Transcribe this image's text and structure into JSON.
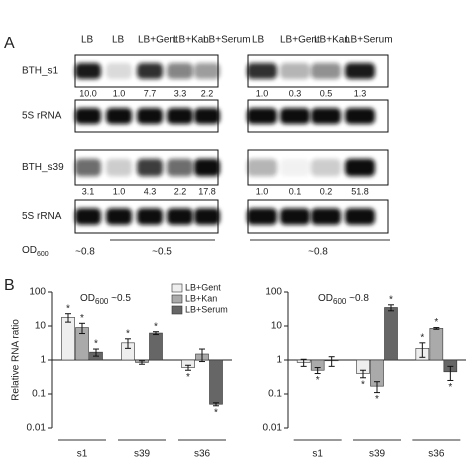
{
  "panel_a": {
    "label": "A",
    "left_lanes": [
      "LB",
      "LB",
      "LB+Gent",
      "LB+Kan",
      "LB+Serum"
    ],
    "right_lanes": [
      "LB",
      "LB+Gent",
      "LB+Kan",
      "LB+Serum"
    ],
    "blots": [
      {
        "name": "BTH_s1",
        "left_values": [
          "10.0",
          "1.0",
          "7.7",
          "3.3",
          "2.2"
        ],
        "right_values": [
          "1.0",
          "0.3",
          "0.5",
          "1.3"
        ]
      },
      {
        "name": "5S rRNA"
      },
      {
        "name": "BTH_s39",
        "left_values": [
          "3.1",
          "1.0",
          "4.3",
          "2.2",
          "17.8"
        ],
        "right_values": [
          "1.0",
          "0.1",
          "0.2",
          "51.8"
        ]
      },
      {
        "name": "5S rRNA"
      }
    ],
    "od": {
      "label": "OD",
      "subscript": "600",
      "groups": [
        "~0.8",
        "~0.5",
        "~0.8"
      ]
    }
  },
  "panel_b": {
    "label": "B"
  },
  "chart_data": [
    {
      "type": "bar",
      "title": {
        "prefix": "OD",
        "subscript": "600",
        "suffix": " ~0.5"
      },
      "ylabel": "Relative RNA ratio",
      "yscale": "log",
      "ylim": [
        0.01,
        100
      ],
      "yticks": [
        0.01,
        0.1,
        1,
        10,
        100
      ],
      "categories": [
        "s1",
        "s39",
        "s36"
      ],
      "legend": "upper right",
      "series": [
        {
          "name": "LB+Gent",
          "color": "#eeeeee",
          "values": [
            18,
            3.2,
            0.6
          ],
          "errors": [
            5,
            1,
            0.1
          ],
          "significance": [
            "*",
            "*",
            "*"
          ]
        },
        {
          "name": "LB+Kan",
          "color": "#aaaaaa",
          "values": [
            9,
            0.85,
            1.5
          ],
          "errors": [
            3,
            0.1,
            0.6
          ],
          "significance": [
            "*",
            null,
            null
          ]
        },
        {
          "name": "LB+Serum",
          "color": "#666666",
          "values": [
            1.7,
            6.2,
            0.05
          ],
          "errors": [
            0.4,
            0.6,
            0.005
          ],
          "significance": [
            "*",
            "*",
            "*"
          ]
        }
      ]
    },
    {
      "type": "bar",
      "title": {
        "prefix": "OD",
        "subscript": "600",
        "suffix": " ~0.8"
      },
      "yscale": "log",
      "ylim": [
        0.01,
        100
      ],
      "yticks": [
        0.01,
        0.1,
        1,
        10,
        100
      ],
      "categories": [
        "s1",
        "s39",
        "s36"
      ],
      "series": [
        {
          "name": "LB+Gent",
          "color": "#eeeeee",
          "values": [
            0.85,
            0.4,
            2.2
          ],
          "errors": [
            0.2,
            0.1,
            1
          ],
          "significance": [
            null,
            "*",
            "*"
          ]
        },
        {
          "name": "LB+Kan",
          "color": "#aaaaaa",
          "values": [
            0.5,
            0.17,
            8.5
          ],
          "errors": [
            0.1,
            0.06,
            0.5
          ],
          "significance": [
            "*",
            "*",
            "*"
          ]
        },
        {
          "name": "LB+Serum",
          "color": "#666666",
          "values": [
            0.95,
            35,
            0.45
          ],
          "errors": [
            0.3,
            7,
            0.2
          ],
          "significance": [
            null,
            "*",
            "*"
          ]
        }
      ]
    }
  ]
}
